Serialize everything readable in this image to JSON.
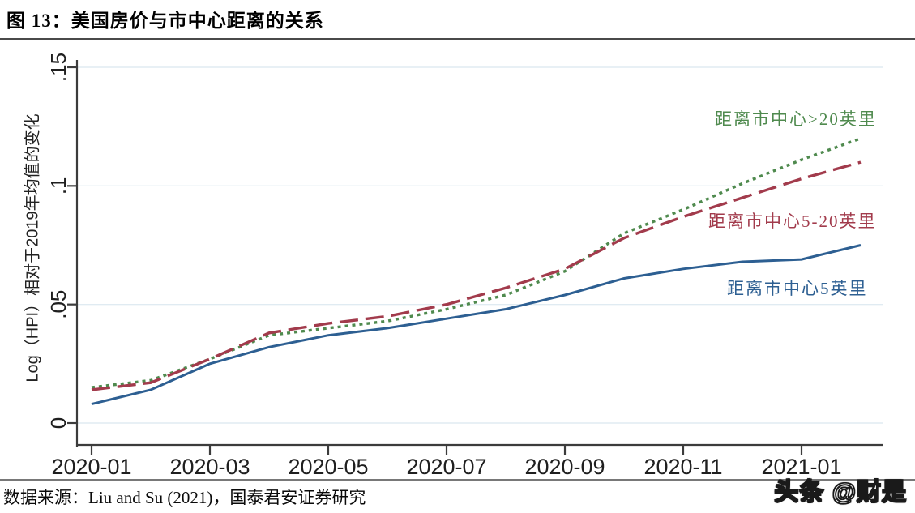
{
  "page": {
    "title": "图 13：美国房价与市中心距离的关系",
    "source": "数据来源：Liu and Su (2021)，国泰君安证券研究",
    "watermark": "头条 @财是"
  },
  "chart_data": {
    "type": "line",
    "title": "图 13：美国房价与市中心距离的关系",
    "x": [
      "2020-01",
      "2020-02",
      "2020-03",
      "2020-04",
      "2020-05",
      "2020-06",
      "2020-07",
      "2020-08",
      "2020-09",
      "2020-10",
      "2020-11",
      "2020-12",
      "2021-01",
      "2021-02"
    ],
    "x_tick_labels": [
      "2020-01",
      "2020-03",
      "2020-05",
      "2020-07",
      "2020-09",
      "2020-11",
      "2021-01"
    ],
    "x_tick_every": 2,
    "ylabel": "Log（HPI）相对于2019年均值的变化",
    "y_tick_labels": [
      "0",
      ".05",
      ".1",
      ".15"
    ],
    "y_tick_values": [
      0,
      0.05,
      0.1,
      0.15
    ],
    "ylim": [
      0,
      0.15
    ],
    "grid": "horizontal",
    "gridline_color": "#e0ebf2",
    "axis_color": "#3c3c3c",
    "tick_label_color": "#1f1f1f",
    "legend_position": "labels-at-line-right",
    "series": [
      {
        "name": "距离市中心>20英里",
        "color": "#4f8a4e",
        "line_style": "dotted",
        "values": [
          0.015,
          0.018,
          0.027,
          0.037,
          0.04,
          0.043,
          0.048,
          0.054,
          0.064,
          0.08,
          0.09,
          0.101,
          0.111,
          0.12
        ]
      },
      {
        "name": "距离市中心5-20英里",
        "color": "#a23b4c",
        "line_style": "dashed",
        "values": [
          0.014,
          0.017,
          0.027,
          0.038,
          0.042,
          0.045,
          0.05,
          0.057,
          0.065,
          0.078,
          0.087,
          0.095,
          0.103,
          0.11
        ]
      },
      {
        "name": "距离市中心5英里",
        "color": "#2d5f92",
        "line_style": "solid",
        "values": [
          0.008,
          0.014,
          0.025,
          0.032,
          0.037,
          0.04,
          0.044,
          0.048,
          0.054,
          0.061,
          0.065,
          0.068,
          0.069,
          0.075
        ]
      }
    ]
  }
}
